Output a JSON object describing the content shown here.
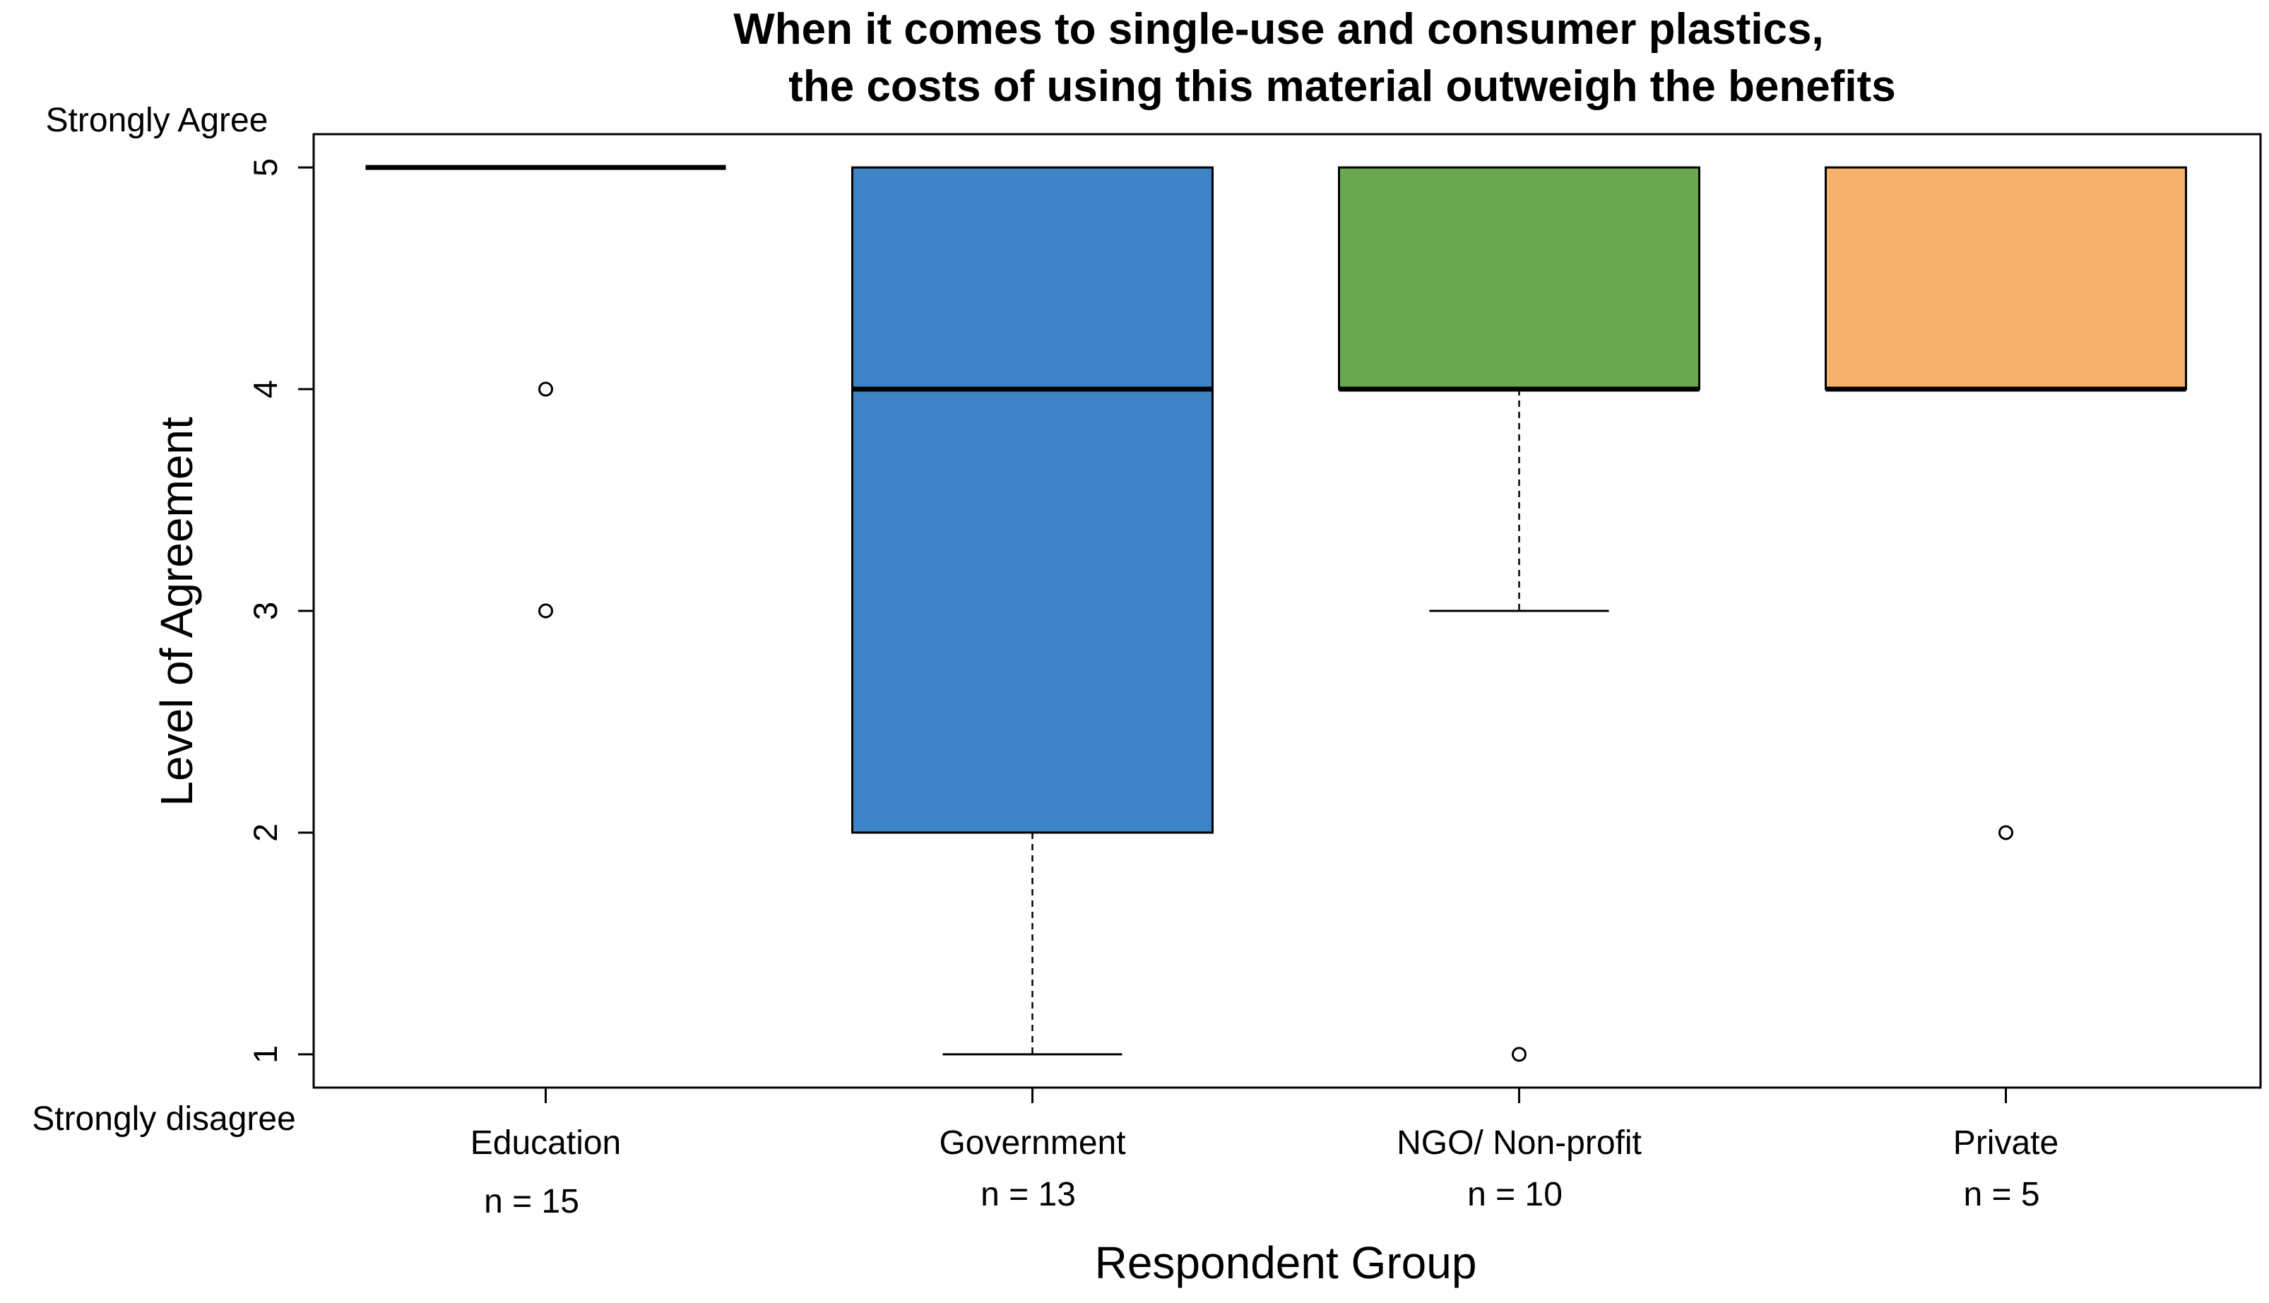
{
  "chart_data": {
    "type": "boxplot",
    "title_lines": [
      "When it comes to single-use and consumer plastics,",
      "the costs of using this material outweigh the benefits"
    ],
    "xlabel": "Respondent Group",
    "ylabel": "Level of Agreement",
    "ylim": [
      0.85,
      5.15
    ],
    "yticks": [
      "1",
      "2",
      "3",
      "4",
      "5"
    ],
    "y_anchor_labels": {
      "top": "Strongly Agree",
      "bottom": "Strongly disagree"
    },
    "series": [
      {
        "name": "Education",
        "n_label": "n = 15",
        "color": "#ffffff",
        "q1": 5,
        "median": 5,
        "q3": 5,
        "whisker_low": 5,
        "whisker_high": 5,
        "outliers": [
          4,
          3
        ]
      },
      {
        "name": "Government",
        "n_label": "n = 13",
        "color": "#3e83c5",
        "q1": 2,
        "median": 4,
        "q3": 5,
        "whisker_low": 1,
        "whisker_high": 5,
        "outliers": []
      },
      {
        "name": "NGO/ Non-profit",
        "n_label": "n = 10",
        "color": "#69a84f",
        "q1": 4,
        "median": 4,
        "q3": 5,
        "whisker_low": 3,
        "whisker_high": 5,
        "outliers": [
          1
        ]
      },
      {
        "name": "Private",
        "n_label": "n = 5",
        "color": "#f5b06c",
        "q1": 4,
        "median": 4,
        "q3": 5,
        "whisker_low": 4,
        "whisker_high": 5,
        "outliers": [
          2
        ]
      }
    ]
  }
}
